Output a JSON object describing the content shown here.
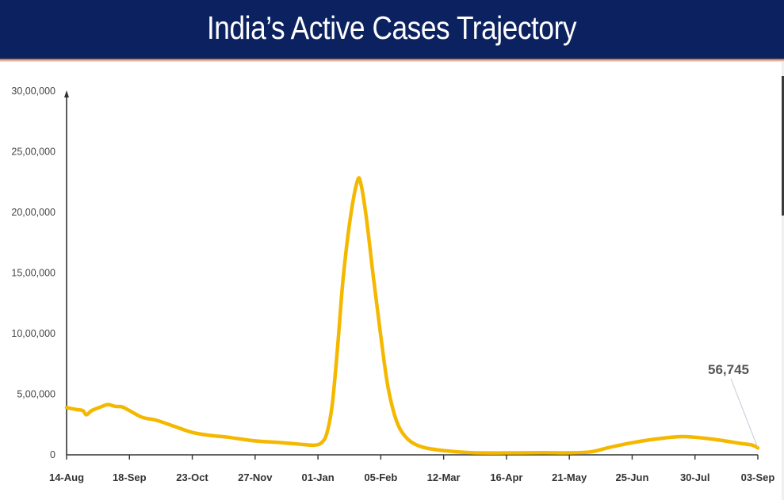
{
  "header": {
    "title": "India’s Active Cases Trajectory"
  },
  "colors": {
    "banner": "#0c2260",
    "stripe": "#e9a98a",
    "line": "#f5b800",
    "axis": "#333333",
    "annotation_leader": "#c8c8d8"
  },
  "chart_data": {
    "type": "line",
    "title": "India’s Active Cases Trajectory",
    "xlabel": "",
    "ylabel": "",
    "ylim": [
      0,
      3000000
    ],
    "grid": false,
    "legend": null,
    "y_ticks": [
      "0",
      "5,00,000",
      "10,00,000",
      "15,00,000",
      "20,00,000",
      "25,00,000",
      "30,00,000"
    ],
    "y_tick_values": [
      0,
      500000,
      1000000,
      1500000,
      2000000,
      2500000,
      3000000
    ],
    "x_ticks": [
      "14-Aug",
      "18-Sep",
      "23-Oct",
      "27-Nov",
      "01-Jan",
      "05-Feb",
      "12-Mar",
      "16-Apr",
      "21-May",
      "25-Jun",
      "30-Jul",
      "03-Sep"
    ],
    "x_tick_day_offsets": [
      0,
      35,
      70,
      105,
      140,
      175,
      210,
      245,
      280,
      315,
      350,
      385
    ],
    "series": [
      {
        "name": "Active Cases",
        "color": "#f5b800",
        "points": [
          {
            "day": 0,
            "value": 390000
          },
          {
            "day": 5,
            "value": 375000
          },
          {
            "day": 9,
            "value": 365000
          },
          {
            "day": 11,
            "value": 330000
          },
          {
            "day": 14,
            "value": 365000
          },
          {
            "day": 19,
            "value": 395000
          },
          {
            "day": 23,
            "value": 415000
          },
          {
            "day": 27,
            "value": 400000
          },
          {
            "day": 31,
            "value": 395000
          },
          {
            "day": 35,
            "value": 365000
          },
          {
            "day": 42,
            "value": 310000
          },
          {
            "day": 50,
            "value": 285000
          },
          {
            "day": 60,
            "value": 235000
          },
          {
            "day": 70,
            "value": 185000
          },
          {
            "day": 80,
            "value": 160000
          },
          {
            "day": 90,
            "value": 145000
          },
          {
            "day": 105,
            "value": 115000
          },
          {
            "day": 120,
            "value": 100000
          },
          {
            "day": 132,
            "value": 85000
          },
          {
            "day": 138,
            "value": 80000
          },
          {
            "day": 142,
            "value": 100000
          },
          {
            "day": 145,
            "value": 180000
          },
          {
            "day": 148,
            "value": 420000
          },
          {
            "day": 151,
            "value": 900000
          },
          {
            "day": 154,
            "value": 1450000
          },
          {
            "day": 158,
            "value": 1950000
          },
          {
            "day": 162,
            "value": 2260000
          },
          {
            "day": 164,
            "value": 2230000
          },
          {
            "day": 167,
            "value": 1950000
          },
          {
            "day": 171,
            "value": 1450000
          },
          {
            "day": 175,
            "value": 980000
          },
          {
            "day": 179,
            "value": 560000
          },
          {
            "day": 184,
            "value": 270000
          },
          {
            "day": 190,
            "value": 130000
          },
          {
            "day": 198,
            "value": 65000
          },
          {
            "day": 210,
            "value": 35000
          },
          {
            "day": 225,
            "value": 18000
          },
          {
            "day": 245,
            "value": 16000
          },
          {
            "day": 265,
            "value": 18000
          },
          {
            "day": 280,
            "value": 17000
          },
          {
            "day": 292,
            "value": 25000
          },
          {
            "day": 302,
            "value": 60000
          },
          {
            "day": 315,
            "value": 100000
          },
          {
            "day": 328,
            "value": 130000
          },
          {
            "day": 342,
            "value": 150000
          },
          {
            "day": 350,
            "value": 145000
          },
          {
            "day": 362,
            "value": 125000
          },
          {
            "day": 375,
            "value": 95000
          },
          {
            "day": 382,
            "value": 80000
          },
          {
            "day": 385,
            "value": 56745
          }
        ]
      }
    ],
    "annotations": [
      {
        "text": "56,745",
        "x_tick": "03-Sep",
        "value": 56745
      }
    ]
  },
  "annotation": {
    "last_value_label": "56,745"
  }
}
